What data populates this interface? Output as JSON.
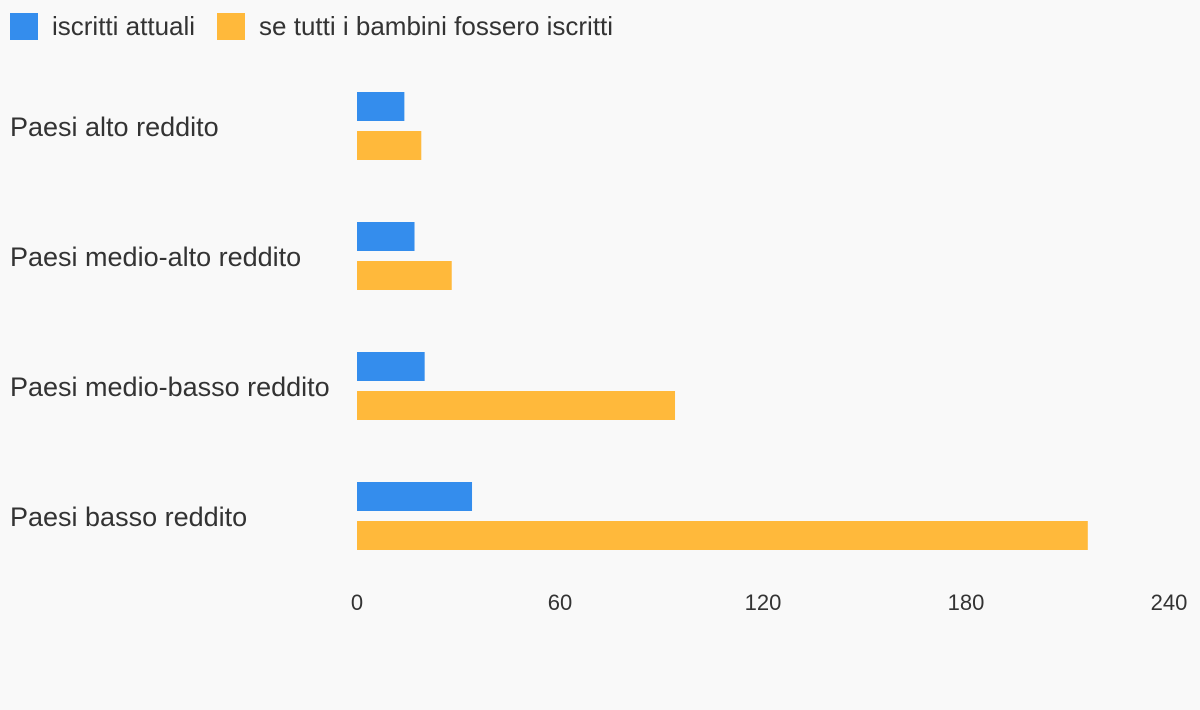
{
  "chart_data": {
    "type": "bar",
    "orientation": "horizontal",
    "categories": [
      "Paesi alto reddito",
      "Paesi medio-alto reddito",
      "Paesi medio-basso reddito",
      "Paesi basso reddito"
    ],
    "series": [
      {
        "name": "iscritti attuali",
        "color": "#348ded",
        "values": [
          14,
          17,
          20,
          34
        ]
      },
      {
        "name": "se tutti i bambini fossero iscritti",
        "color": "#ffb93b",
        "values": [
          19,
          28,
          94,
          216
        ]
      }
    ],
    "xlim": [
      0,
      240
    ],
    "xticks": [
      "0",
      "60",
      "120",
      "180",
      "240"
    ],
    "legend_position": "top-left",
    "grid": false
  }
}
